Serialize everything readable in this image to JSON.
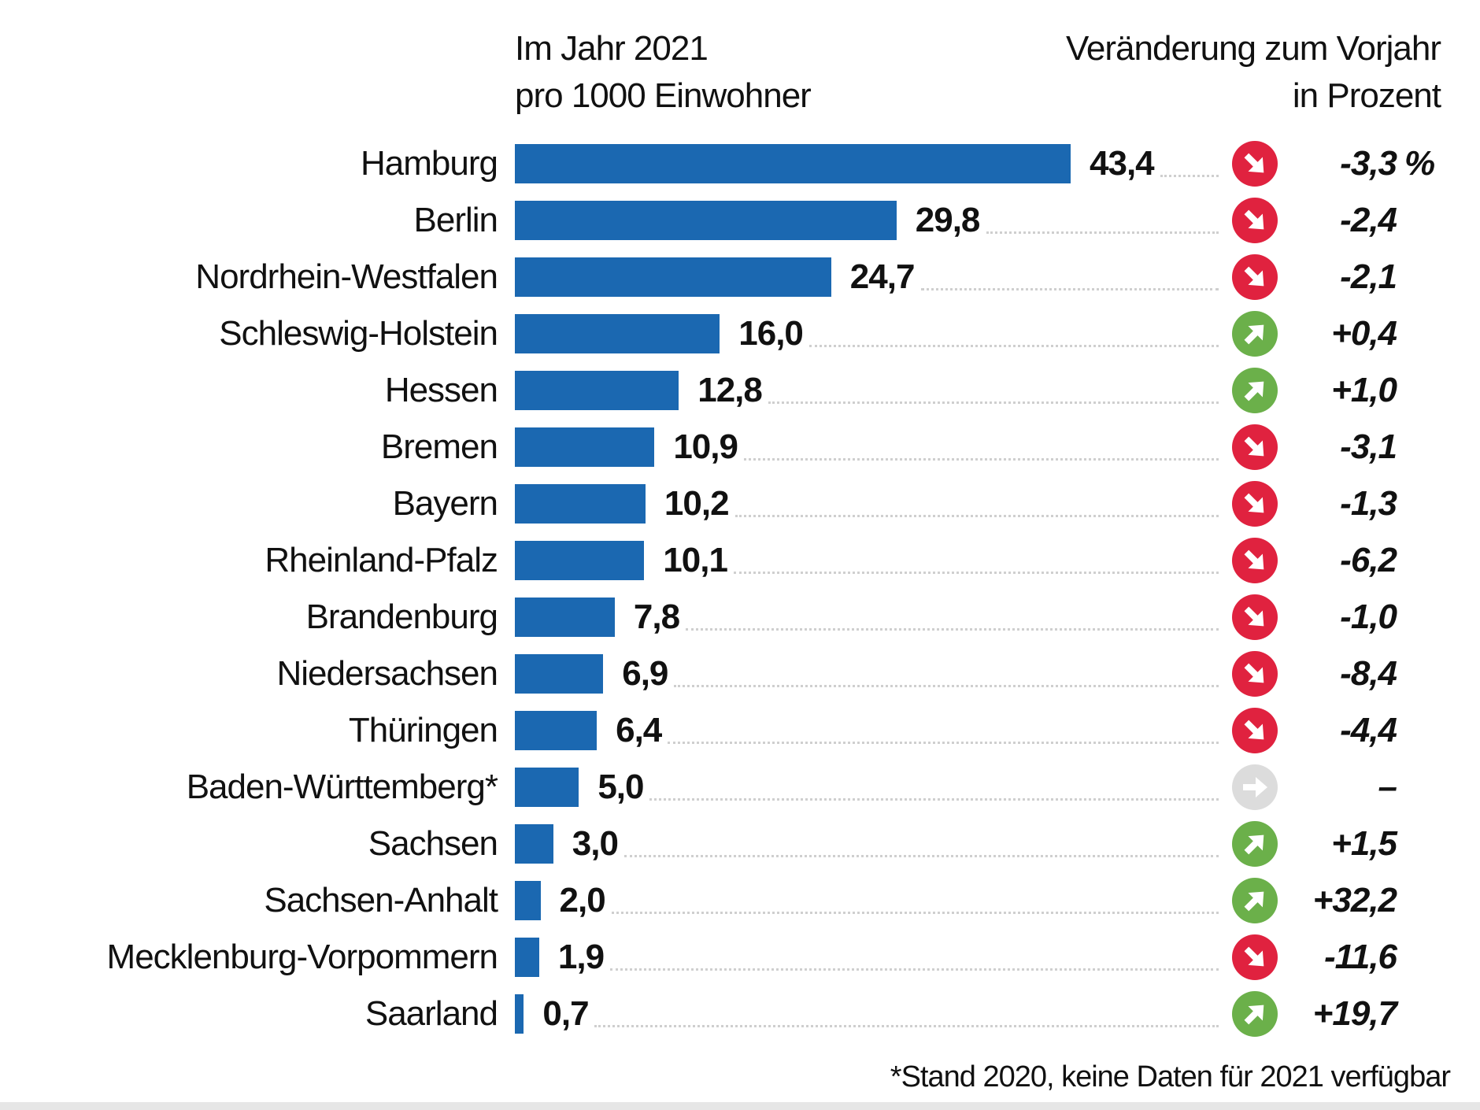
{
  "chart_data": {
    "type": "bar",
    "orientation": "horizontal",
    "header_left": [
      "Im Jahr 2021",
      "pro 1000 Einwohner"
    ],
    "header_right": [
      "Veränderung zum Vorjahr",
      "in Prozent"
    ],
    "categories": [
      "Hamburg",
      "Berlin",
      "Nordrhein-Westfalen",
      "Schleswig-Holstein",
      "Hessen",
      "Bremen",
      "Bayern",
      "Rheinland-Pfalz",
      "Brandenburg",
      "Niedersachsen",
      "Thüringen",
      "Baden-Württemberg*",
      "Sachsen",
      "Sachsen-Anhalt",
      "Mecklenburg-Vorpommern",
      "Saarland"
    ],
    "values": [
      43.4,
      29.8,
      24.7,
      16.0,
      12.8,
      10.9,
      10.2,
      10.1,
      7.8,
      6.9,
      6.4,
      5.0,
      3.0,
      2.0,
      1.9,
      0.7
    ],
    "value_labels": [
      "43,4",
      "29,8",
      "24,7",
      "16,0",
      "12,8",
      "10,9",
      "10,2",
      "10,1",
      "7,8",
      "6,9",
      "6,4",
      "5,0",
      "3,0",
      "2,0",
      "1,9",
      "0,7"
    ],
    "change_labels": [
      "-3,3",
      "-2,4",
      "-2,1",
      "+0,4",
      "+1,0",
      "-3,1",
      "-1,3",
      "-6,2",
      "-1,0",
      "-8,4",
      "-4,4",
      "–",
      "+1,5",
      "+32,2",
      "-11,6",
      "+19,7"
    ],
    "change_values": [
      -3.3,
      -2.4,
      -2.1,
      0.4,
      1.0,
      -3.1,
      -1.3,
      -6.2,
      -1.0,
      -8.4,
      -4.4,
      null,
      1.5,
      32.2,
      -11.6,
      19.7
    ],
    "change_unit": "%",
    "trend_icons": [
      "down",
      "down",
      "down",
      "up",
      "up",
      "down",
      "down",
      "down",
      "down",
      "down",
      "down",
      "neutral",
      "up",
      "up",
      "down",
      "up"
    ],
    "footnote": "*Stand 2020, keine Daten für 2021 verfügbar",
    "colors": {
      "bar": "#1b68b1",
      "down": "#e0223f",
      "up": "#6bb04a",
      "neutral": "#dcdcdc"
    },
    "grid": false,
    "legend": "none"
  }
}
